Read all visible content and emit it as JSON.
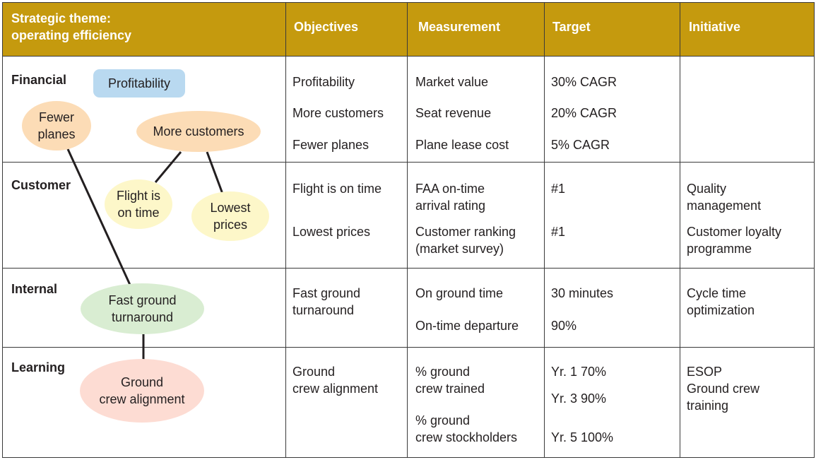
{
  "header": {
    "theme_label": "Strategic theme:\noperating efficiency",
    "col_objectives": "Objectives",
    "col_measurement": "Measurement",
    "col_target": "Target",
    "col_initiative": "Initiative"
  },
  "colors": {
    "header_bg": "#c59a0e",
    "profitability_fill": "#b9d9f0",
    "orange_fill": "#fcdcb6",
    "yellow_fill": "#fdf7c9",
    "green_fill": "#d9edd2",
    "pink_fill": "#fddcd3"
  },
  "rows": {
    "financial": {
      "label": "Financial",
      "objectives": [
        "Profitability",
        "More customers",
        "Fewer planes"
      ],
      "measurements": [
        "Market value",
        "Seat revenue",
        "Plane lease cost"
      ],
      "targets": [
        "30% CAGR",
        "20% CAGR",
        "5% CAGR"
      ],
      "initiatives": []
    },
    "customer": {
      "label": "Customer",
      "objectives": [
        "Flight is on time",
        "Lowest prices"
      ],
      "measurements": [
        "FAA on-time\narrival rating",
        "Customer ranking\n(market survey)"
      ],
      "targets": [
        "#1",
        "#1"
      ],
      "initiatives": [
        "Quality\nmanagement",
        "Customer loyalty\nprogramme"
      ]
    },
    "internal": {
      "label": "Internal",
      "objectives": [
        "Fast ground\nturnaround"
      ],
      "measurements": [
        "On ground time",
        "On-time departure"
      ],
      "targets": [
        "30 minutes",
        "90%"
      ],
      "initiatives": [
        "Cycle time\noptimization"
      ]
    },
    "learning": {
      "label": "Learning",
      "objectives": [
        "Ground\ncrew alignment"
      ],
      "measurements": [
        "% ground\ncrew trained",
        "% ground\ncrew stockholders"
      ],
      "targets": [
        "Yr. 1 70%",
        "Yr. 3 90%",
        "Yr. 5 100%"
      ],
      "initiatives": [
        "ESOP\nGround crew\ntraining"
      ]
    }
  },
  "map": {
    "profitability": "Profitability",
    "fewer_planes": "Fewer\nplanes",
    "more_customers": "More customers",
    "flight_on_time": "Flight is\non time",
    "lowest_prices": "Lowest\nprices",
    "fast_ground": "Fast ground\nturnaround",
    "ground_crew": "Ground\ncrew alignment"
  }
}
